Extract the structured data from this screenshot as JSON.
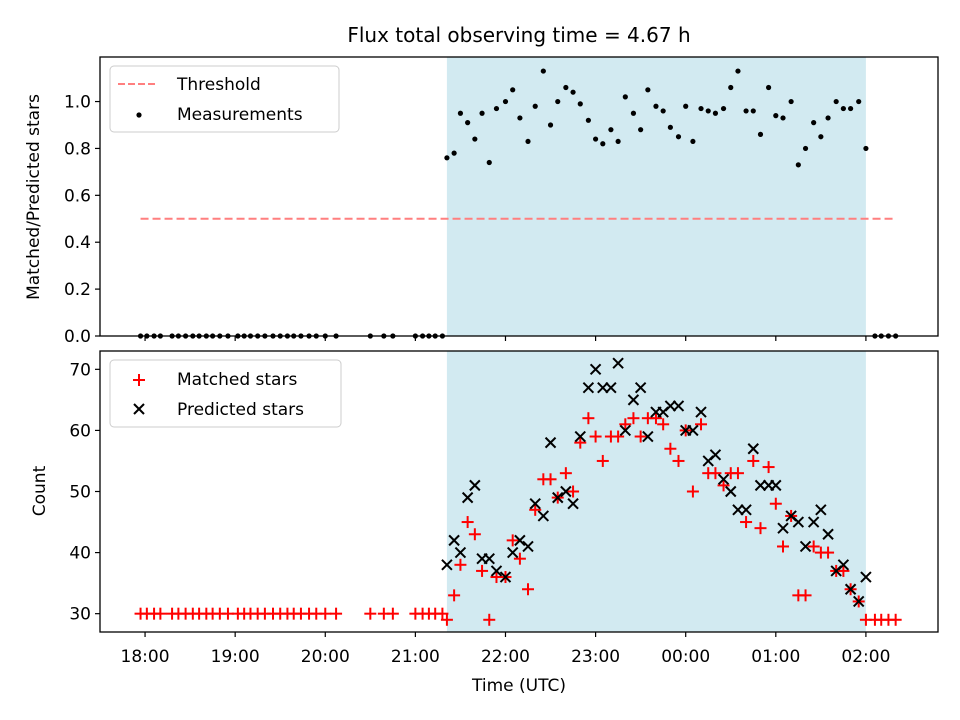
{
  "figure": {
    "title": "Flux total observing time = 4.67 h",
    "xlabel": "Time (UTC)",
    "x_ticks": [
      {
        "h": 18,
        "label": "18:00"
      },
      {
        "h": 19,
        "label": "19:00"
      },
      {
        "h": 20,
        "label": "20:00"
      },
      {
        "h": 21,
        "label": "21:00"
      },
      {
        "h": 22,
        "label": "22:00"
      },
      {
        "h": 23,
        "label": "23:00"
      },
      {
        "h": 24,
        "label": "00:00"
      },
      {
        "h": 25,
        "label": "01:00"
      },
      {
        "h": 26,
        "label": "02:00"
      }
    ],
    "colors": {
      "shade": "#add8e6",
      "threshold": "#ff7f7f",
      "matched": "#ff0000",
      "predicted": "#000000",
      "measurements": "#000000"
    }
  },
  "chart_data": [
    {
      "type": "scatter",
      "title": "Flux total observing time = 4.67 h",
      "xlabel": "",
      "ylabel": "Matched/Predicted stars",
      "xlim": [
        17.5,
        26.8
      ],
      "ylim": [
        0,
        1.19
      ],
      "y_ticks": [
        0.0,
        0.2,
        0.4,
        0.6,
        0.8,
        1.0
      ],
      "y_tick_labels": [
        "0.0",
        "0.2",
        "0.4",
        "0.6",
        "0.8",
        "1.0"
      ],
      "grid": false,
      "legend": "top-left",
      "shaded_span": [
        21.35,
        26.0
      ],
      "threshold": {
        "name": "Threshold",
        "value": 0.5,
        "x_range": [
          17.95,
          26.3
        ]
      },
      "series": [
        {
          "name": "Measurements",
          "points": [
            [
              17.95,
              0
            ],
            [
              18.02,
              0
            ],
            [
              18.1,
              0
            ],
            [
              18.17,
              0
            ],
            [
              18.3,
              0
            ],
            [
              18.37,
              0
            ],
            [
              18.45,
              0
            ],
            [
              18.53,
              0
            ],
            [
              18.6,
              0
            ],
            [
              18.68,
              0
            ],
            [
              18.75,
              0
            ],
            [
              18.83,
              0
            ],
            [
              18.92,
              0
            ],
            [
              19.03,
              0
            ],
            [
              19.1,
              0
            ],
            [
              19.17,
              0
            ],
            [
              19.25,
              0
            ],
            [
              19.33,
              0
            ],
            [
              19.42,
              0
            ],
            [
              19.5,
              0
            ],
            [
              19.58,
              0
            ],
            [
              19.65,
              0
            ],
            [
              19.73,
              0
            ],
            [
              19.82,
              0
            ],
            [
              19.9,
              0
            ],
            [
              20.0,
              0
            ],
            [
              20.12,
              0
            ],
            [
              20.5,
              0
            ],
            [
              20.65,
              0
            ],
            [
              20.75,
              0
            ],
            [
              21.0,
              0
            ],
            [
              21.08,
              0
            ],
            [
              21.15,
              0
            ],
            [
              21.22,
              0
            ],
            [
              21.3,
              0
            ],
            [
              21.35,
              0.76
            ],
            [
              21.43,
              0.78
            ],
            [
              21.5,
              0.95
            ],
            [
              21.58,
              0.91
            ],
            [
              21.66,
              0.84
            ],
            [
              21.74,
              0.95
            ],
            [
              21.82,
              0.74
            ],
            [
              21.9,
              0.97
            ],
            [
              22.0,
              1.0
            ],
            [
              22.08,
              1.05
            ],
            [
              22.16,
              0.93
            ],
            [
              22.25,
              0.83
            ],
            [
              22.33,
              0.98
            ],
            [
              22.42,
              1.13
            ],
            [
              22.5,
              0.9
            ],
            [
              22.58,
              1.0
            ],
            [
              22.67,
              1.06
            ],
            [
              22.75,
              1.04
            ],
            [
              22.83,
              0.99
            ],
            [
              22.92,
              0.92
            ],
            [
              23.0,
              0.84
            ],
            [
              23.08,
              0.82
            ],
            [
              23.17,
              0.88
            ],
            [
              23.25,
              0.83
            ],
            [
              23.33,
              1.02
            ],
            [
              23.42,
              0.95
            ],
            [
              23.5,
              0.88
            ],
            [
              23.58,
              1.05
            ],
            [
              23.67,
              0.98
            ],
            [
              23.75,
              0.96
            ],
            [
              23.83,
              0.89
            ],
            [
              23.92,
              0.85
            ],
            [
              24.0,
              0.98
            ],
            [
              24.08,
              0.83
            ],
            [
              24.17,
              0.97
            ],
            [
              24.25,
              0.96
            ],
            [
              24.33,
              0.95
            ],
            [
              24.42,
              0.97
            ],
            [
              24.5,
              1.06
            ],
            [
              24.58,
              1.13
            ],
            [
              24.67,
              0.96
            ],
            [
              24.75,
              0.96
            ],
            [
              24.83,
              0.86
            ],
            [
              24.92,
              1.06
            ],
            [
              25.0,
              0.94
            ],
            [
              25.08,
              0.93
            ],
            [
              25.17,
              1.0
            ],
            [
              25.25,
              0.73
            ],
            [
              25.33,
              0.8
            ],
            [
              25.42,
              0.91
            ],
            [
              25.5,
              0.85
            ],
            [
              25.58,
              0.93
            ],
            [
              25.67,
              1.0
            ],
            [
              25.75,
              0.97
            ],
            [
              25.83,
              0.97
            ],
            [
              25.92,
              1.0
            ],
            [
              26.0,
              0.8
            ],
            [
              26.1,
              0
            ],
            [
              26.17,
              0
            ],
            [
              26.25,
              0
            ],
            [
              26.33,
              0
            ]
          ]
        }
      ]
    },
    {
      "type": "scatter",
      "title": "",
      "xlabel": "Time (UTC)",
      "ylabel": "Count",
      "xlim": [
        17.5,
        26.8
      ],
      "ylim": [
        27,
        73
      ],
      "y_ticks": [
        30,
        40,
        50,
        60,
        70
      ],
      "y_tick_labels": [
        "30",
        "40",
        "50",
        "60",
        "70"
      ],
      "grid": false,
      "legend": "top-left",
      "shaded_span": [
        21.35,
        26.0
      ],
      "series": [
        {
          "name": "Matched stars",
          "marker": "plus",
          "points": [
            [
              17.95,
              30
            ],
            [
              18.02,
              30
            ],
            [
              18.1,
              30
            ],
            [
              18.17,
              30
            ],
            [
              18.3,
              30
            ],
            [
              18.37,
              30
            ],
            [
              18.45,
              30
            ],
            [
              18.53,
              30
            ],
            [
              18.6,
              30
            ],
            [
              18.68,
              30
            ],
            [
              18.75,
              30
            ],
            [
              18.83,
              30
            ],
            [
              18.92,
              30
            ],
            [
              19.03,
              30
            ],
            [
              19.1,
              30
            ],
            [
              19.17,
              30
            ],
            [
              19.25,
              30
            ],
            [
              19.33,
              30
            ],
            [
              19.42,
              30
            ],
            [
              19.5,
              30
            ],
            [
              19.58,
              30
            ],
            [
              19.65,
              30
            ],
            [
              19.73,
              30
            ],
            [
              19.82,
              30
            ],
            [
              19.9,
              30
            ],
            [
              20.0,
              30
            ],
            [
              20.12,
              30
            ],
            [
              20.5,
              30
            ],
            [
              20.65,
              30
            ],
            [
              20.75,
              30
            ],
            [
              21.0,
              30
            ],
            [
              21.08,
              30
            ],
            [
              21.15,
              30
            ],
            [
              21.22,
              30
            ],
            [
              21.3,
              30
            ],
            [
              21.35,
              29
            ],
            [
              21.43,
              33
            ],
            [
              21.5,
              38
            ],
            [
              21.58,
              45
            ],
            [
              21.66,
              43
            ],
            [
              21.74,
              37
            ],
            [
              21.82,
              29
            ],
            [
              21.9,
              36
            ],
            [
              22.0,
              36
            ],
            [
              22.08,
              42
            ],
            [
              22.16,
              39
            ],
            [
              22.25,
              34
            ],
            [
              22.33,
              47
            ],
            [
              22.42,
              52
            ],
            [
              22.5,
              52
            ],
            [
              22.58,
              49
            ],
            [
              22.67,
              53
            ],
            [
              22.75,
              50
            ],
            [
              22.83,
              58
            ],
            [
              22.92,
              62
            ],
            [
              23.0,
              59
            ],
            [
              23.08,
              55
            ],
            [
              23.17,
              59
            ],
            [
              23.25,
              59
            ],
            [
              23.33,
              61
            ],
            [
              23.42,
              62
            ],
            [
              23.5,
              59
            ],
            [
              23.58,
              62
            ],
            [
              23.67,
              62
            ],
            [
              23.75,
              61
            ],
            [
              23.83,
              57
            ],
            [
              23.92,
              55
            ],
            [
              24.0,
              60
            ],
            [
              24.08,
              50
            ],
            [
              24.17,
              61
            ],
            [
              24.25,
              53
            ],
            [
              24.33,
              53
            ],
            [
              24.42,
              51
            ],
            [
              24.5,
              53
            ],
            [
              24.58,
              53
            ],
            [
              24.67,
              45
            ],
            [
              24.75,
              55
            ],
            [
              24.83,
              44
            ],
            [
              24.92,
              54
            ],
            [
              25.0,
              48
            ],
            [
              25.08,
              41
            ],
            [
              25.17,
              46
            ],
            [
              25.25,
              33
            ],
            [
              25.33,
              33
            ],
            [
              25.42,
              41
            ],
            [
              25.5,
              40
            ],
            [
              25.58,
              40
            ],
            [
              25.67,
              37
            ],
            [
              25.75,
              37
            ],
            [
              25.83,
              34
            ],
            [
              25.92,
              32
            ],
            [
              26.0,
              29
            ],
            [
              26.1,
              29
            ],
            [
              26.17,
              29
            ],
            [
              26.25,
              29
            ],
            [
              26.33,
              29
            ]
          ]
        },
        {
          "name": "Predicted stars",
          "marker": "x",
          "points": [
            [
              21.35,
              38
            ],
            [
              21.43,
              42
            ],
            [
              21.5,
              40
            ],
            [
              21.58,
              49
            ],
            [
              21.66,
              51
            ],
            [
              21.74,
              39
            ],
            [
              21.82,
              39
            ],
            [
              21.9,
              37
            ],
            [
              22.0,
              36
            ],
            [
              22.08,
              40
            ],
            [
              22.16,
              42
            ],
            [
              22.25,
              41
            ],
            [
              22.33,
              48
            ],
            [
              22.42,
              46
            ],
            [
              22.5,
              58
            ],
            [
              22.58,
              49
            ],
            [
              22.67,
              50
            ],
            [
              22.75,
              48
            ],
            [
              22.83,
              59
            ],
            [
              22.92,
              67
            ],
            [
              23.0,
              70
            ],
            [
              23.08,
              67
            ],
            [
              23.17,
              67
            ],
            [
              23.25,
              71
            ],
            [
              23.33,
              60
            ],
            [
              23.42,
              65
            ],
            [
              23.5,
              67
            ],
            [
              23.58,
              59
            ],
            [
              23.67,
              63
            ],
            [
              23.75,
              63
            ],
            [
              23.83,
              64
            ],
            [
              23.92,
              64
            ],
            [
              24.0,
              60
            ],
            [
              24.08,
              60
            ],
            [
              24.17,
              63
            ],
            [
              24.25,
              55
            ],
            [
              24.33,
              56
            ],
            [
              24.42,
              52
            ],
            [
              24.5,
              50
            ],
            [
              24.58,
              47
            ],
            [
              24.67,
              47
            ],
            [
              24.75,
              57
            ],
            [
              24.83,
              51
            ],
            [
              24.92,
              51
            ],
            [
              25.0,
              51
            ],
            [
              25.08,
              44
            ],
            [
              25.17,
              46
            ],
            [
              25.25,
              45
            ],
            [
              25.33,
              41
            ],
            [
              25.42,
              45
            ],
            [
              25.5,
              47
            ],
            [
              25.58,
              43
            ],
            [
              25.67,
              37
            ],
            [
              25.75,
              38
            ],
            [
              25.83,
              34
            ],
            [
              25.92,
              32
            ],
            [
              26.0,
              36
            ]
          ]
        }
      ]
    }
  ]
}
